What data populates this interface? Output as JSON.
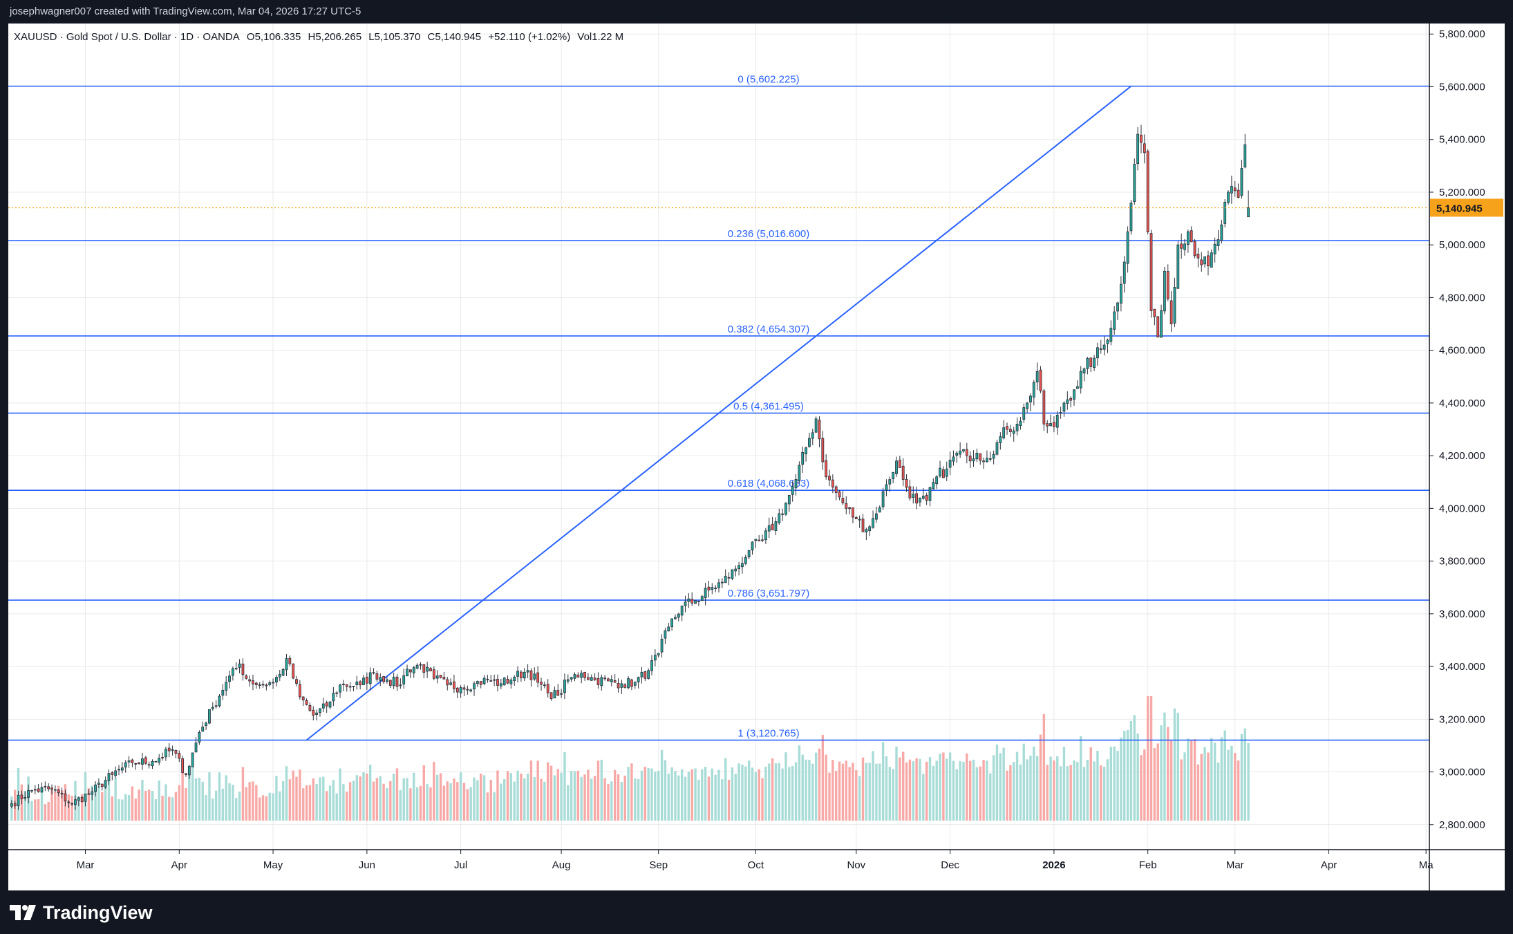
{
  "header": {
    "credit": "josephwagner007 created with TradingView.com, Mar 04, 2026 17:27 UTC-5"
  },
  "symbol_info": {
    "title": "XAUUSD · Gold Spot / U.S. Dollar · 1D · OANDA",
    "open": "O5,106.335",
    "high": "H5,206.265",
    "low": "L5,105.370",
    "close": "C5,140.945",
    "change": "+52.110 (+1.02%)",
    "volume": "Vol1.22 M"
  },
  "footer": {
    "brand": "TradingView"
  },
  "colors": {
    "up": "#26a69a",
    "down": "#ef5350",
    "vol_up": "#a8dcd7",
    "vol_down": "#f7a9a7",
    "fib": "#2962ff",
    "last_price": "#f7a21b",
    "grid": "#e8e9ec"
  },
  "chart_data": {
    "type": "candlestick",
    "price_axis_ticks": [
      "5,800.000",
      "5,600.000",
      "5,400.000",
      "5,200.000",
      "5,000.000",
      "4,800.000",
      "4,600.000",
      "4,400.000",
      "4,200.000",
      "4,000.000",
      "3,800.000",
      "3,600.000",
      "3,400.000",
      "3,200.000",
      "3,000.000",
      "2,800.000"
    ],
    "price_axis_values": [
      5800,
      5600,
      5400,
      5200,
      5000,
      4800,
      4600,
      4400,
      4200,
      4000,
      3800,
      3600,
      3400,
      3200,
      3000,
      2800
    ],
    "ylim": [
      2705,
      5840
    ],
    "time_axis_labels": [
      {
        "label": "Mar",
        "day": 22
      },
      {
        "label": "Apr",
        "day": 50
      },
      {
        "label": "May",
        "day": 78
      },
      {
        "label": "Jun",
        "day": 106
      },
      {
        "label": "Jul",
        "day": 134
      },
      {
        "label": "Aug",
        "day": 164
      },
      {
        "label": "Sep",
        "day": 193
      },
      {
        "label": "Oct",
        "day": 222
      },
      {
        "label": "Nov",
        "day": 252
      },
      {
        "label": "Dec",
        "day": 280
      },
      {
        "label": "2026",
        "day": 311,
        "bold": true
      },
      {
        "label": "Feb",
        "day": 339
      },
      {
        "label": "Mar",
        "day": 365
      },
      {
        "label": "Apr",
        "day": 393
      },
      {
        "label": "Ma",
        "day": 422
      }
    ],
    "xlim": [
      -1,
      423
    ],
    "last_price": 5140.945,
    "last_price_label": "5,140.945",
    "fib_levels": [
      {
        "label": "0 (5,602.225)",
        "price": 5602.225
      },
      {
        "label": "0.236 (5,016.600)",
        "price": 5016.6
      },
      {
        "label": "0.382 (4,654.307)",
        "price": 4654.307
      },
      {
        "label": "0.5 (4,361.495)",
        "price": 4361.495
      },
      {
        "label": "0.618 (4,068.683)",
        "price": 4068.683
      },
      {
        "label": "0.786 (3,651.797)",
        "price": 3651.797
      },
      {
        "label": "1 (3,120.765)",
        "price": 3120.765
      }
    ],
    "trend_line": {
      "start": {
        "day": 88,
        "price": 3120.765
      },
      "end": {
        "day": 334,
        "price": 5602.225
      }
    },
    "anchors": [
      [
        0,
        2880
      ],
      [
        6,
        2930
      ],
      [
        12,
        2935
      ],
      [
        18,
        2880
      ],
      [
        24,
        2925
      ],
      [
        30,
        2990
      ],
      [
        36,
        3035
      ],
      [
        42,
        3040
      ],
      [
        48,
        3085
      ],
      [
        52,
        2990
      ],
      [
        56,
        3150
      ],
      [
        60,
        3245
      ],
      [
        64,
        3340
      ],
      [
        68,
        3410
      ],
      [
        70,
        3355
      ],
      [
        74,
        3330
      ],
      [
        78,
        3340
      ],
      [
        80,
        3370
      ],
      [
        82,
        3430
      ],
      [
        86,
        3285
      ],
      [
        90,
        3215
      ],
      [
        94,
        3250
      ],
      [
        98,
        3330
      ],
      [
        104,
        3330
      ],
      [
        108,
        3375
      ],
      [
        112,
        3350
      ],
      [
        116,
        3330
      ],
      [
        118,
        3390
      ],
      [
        122,
        3405
      ],
      [
        126,
        3355
      ],
      [
        130,
        3330
      ],
      [
        134,
        3320
      ],
      [
        138,
        3335
      ],
      [
        142,
        3350
      ],
      [
        146,
        3335
      ],
      [
        150,
        3360
      ],
      [
        154,
        3385
      ],
      [
        157,
        3340
      ],
      [
        160,
        3300
      ],
      [
        163,
        3290
      ],
      [
        166,
        3350
      ],
      [
        170,
        3375
      ],
      [
        174,
        3350
      ],
      [
        178,
        3345
      ],
      [
        182,
        3335
      ],
      [
        186,
        3340
      ],
      [
        190,
        3385
      ],
      [
        193,
        3450
      ],
      [
        196,
        3550
      ],
      [
        200,
        3630
      ],
      [
        204,
        3650
      ],
      [
        208,
        3690
      ],
      [
        212,
        3720
      ],
      [
        216,
        3770
      ],
      [
        220,
        3840
      ],
      [
        224,
        3880
      ],
      [
        228,
        3950
      ],
      [
        231,
        4020
      ],
      [
        234,
        4110
      ],
      [
        237,
        4230
      ],
      [
        240,
        4340
      ],
      [
        243,
        4120
      ],
      [
        246,
        4060
      ],
      [
        249,
        4000
      ],
      [
        252,
        3960
      ],
      [
        255,
        3920
      ],
      [
        258,
        3980
      ],
      [
        261,
        4090
      ],
      [
        264,
        4180
      ],
      [
        267,
        4080
      ],
      [
        270,
        4020
      ],
      [
        273,
        4030
      ],
      [
        276,
        4120
      ],
      [
        279,
        4150
      ],
      [
        282,
        4210
      ],
      [
        285,
        4200
      ],
      [
        288,
        4210
      ],
      [
        291,
        4190
      ],
      [
        294,
        4250
      ],
      [
        297,
        4300
      ],
      [
        300,
        4320
      ],
      [
        303,
        4400
      ],
      [
        306,
        4520
      ],
      [
        308,
        4320
      ],
      [
        311,
        4310
      ],
      [
        314,
        4400
      ],
      [
        317,
        4450
      ],
      [
        320,
        4530
      ],
      [
        323,
        4570
      ],
      [
        326,
        4620
      ],
      [
        330,
        4780
      ],
      [
        333,
        5050
      ],
      [
        336,
        5420
      ],
      [
        338,
        5350
      ],
      [
        340,
        4750
      ],
      [
        342,
        4650
      ],
      [
        344,
        4900
      ],
      [
        346,
        4700
      ],
      [
        348,
        5000
      ],
      [
        351,
        5050
      ],
      [
        354,
        4950
      ],
      [
        357,
        4920
      ],
      [
        360,
        5020
      ],
      [
        363,
        5200
      ],
      [
        366,
        5180
      ],
      [
        368,
        5380
      ],
      [
        369,
        5140.9
      ]
    ],
    "last_bar": {
      "open": 5106.335,
      "high": 5206.265,
      "low": 5105.37,
      "close": 5140.945
    }
  }
}
